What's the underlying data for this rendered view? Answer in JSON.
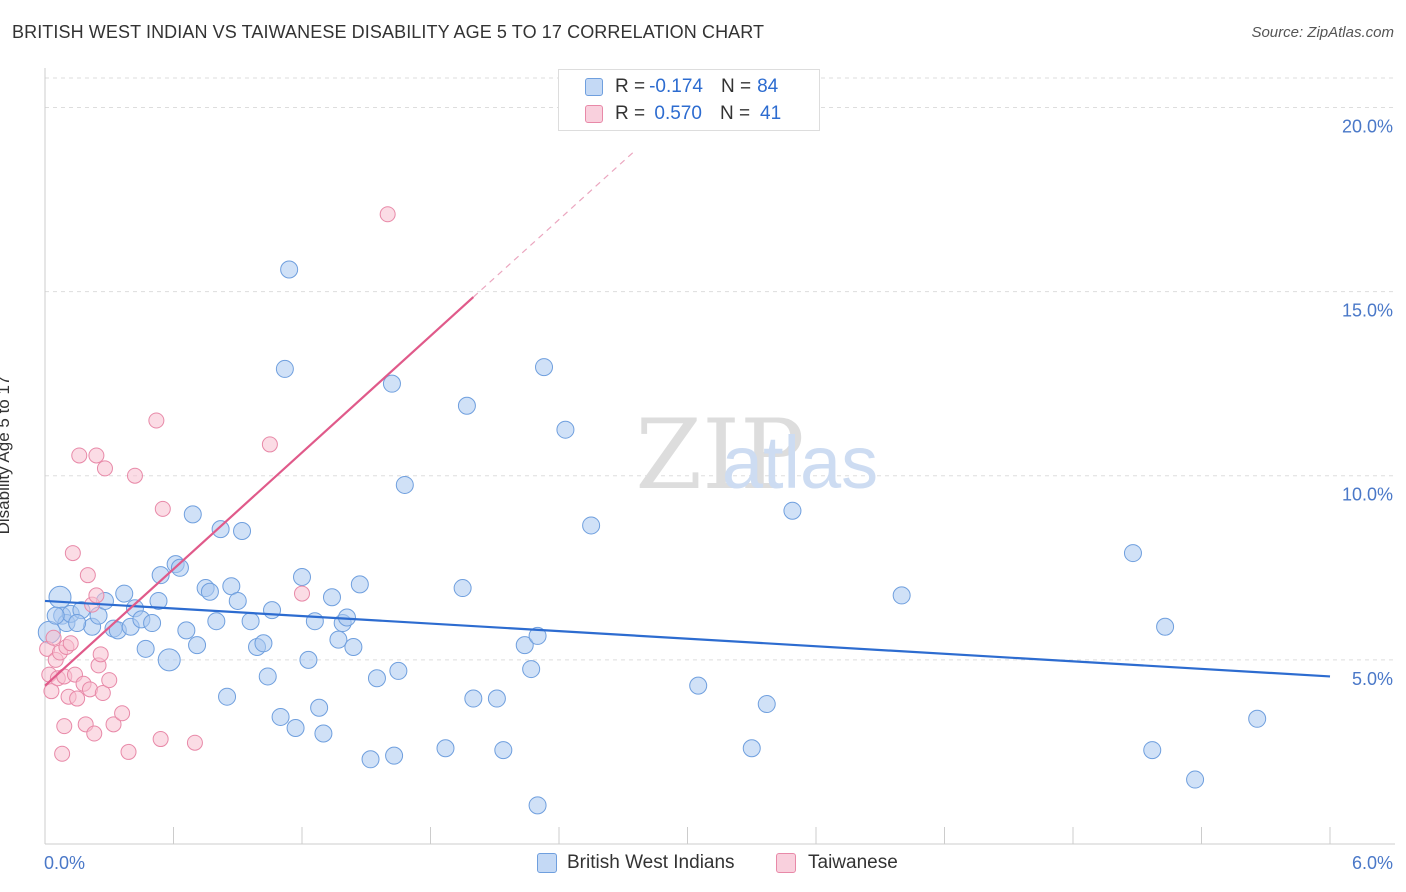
{
  "title": "BRITISH WEST INDIAN VS TAIWANESE DISABILITY AGE 5 TO 17 CORRELATION CHART",
  "source": "Source: ZipAtlas.com",
  "watermark": {
    "zip": "ZIP",
    "atlas": "atlas"
  },
  "legend": {
    "rows": [
      {
        "r_label": "R = ",
        "r_value": "-0.174",
        "n_label": "N = ",
        "n_value": "84",
        "color": "#a9c8f0",
        "border": "#6f9fde"
      },
      {
        "r_label": "R = ",
        "r_value": " 0.570",
        "n_label": "N = ",
        "n_value": "41",
        "color": "#f7bfd0",
        "border": "#e889a8"
      }
    ]
  },
  "bottom_legend": [
    "British West Indians",
    "Taiwanese"
  ],
  "chart_data": {
    "type": "scatter",
    "title": "BRITISH WEST INDIAN VS TAIWANESE DISABILITY AGE 5 TO 17 CORRELATION CHART",
    "xlabel": "",
    "ylabel": "Disability Age 5 to 17",
    "xlim": [
      0,
      6.0
    ],
    "ylim": [
      0,
      20.8
    ],
    "x_ticks": [
      "0.0%",
      "6.0%"
    ],
    "y_ticks": [
      {
        "value": 5,
        "label": "5.0%"
      },
      {
        "value": 10,
        "label": "10.0%"
      },
      {
        "value": 15,
        "label": "15.0%"
      },
      {
        "value": 20,
        "label": "20.0%"
      }
    ],
    "series": [
      {
        "name": "British West Indians",
        "color": "#a9c8f0",
        "edge": "#6f9fde",
        "trend": {
          "x0": 0.0,
          "y0": 6.6,
          "x1": 6.0,
          "y1": 4.55,
          "color": "#2d6cd0"
        },
        "points": [
          [
            0.02,
            5.75
          ],
          [
            0.07,
            6.7
          ],
          [
            0.08,
            6.2
          ],
          [
            0.1,
            6.0
          ],
          [
            0.12,
            6.25
          ],
          [
            0.17,
            6.35
          ],
          [
            0.22,
            5.9
          ],
          [
            0.25,
            6.2
          ],
          [
            0.28,
            6.6
          ],
          [
            0.32,
            5.85
          ],
          [
            0.34,
            5.8
          ],
          [
            0.37,
            6.8
          ],
          [
            0.4,
            5.9
          ],
          [
            0.42,
            6.4
          ],
          [
            0.45,
            6.1
          ],
          [
            0.47,
            5.3
          ],
          [
            0.5,
            6.0
          ],
          [
            0.53,
            6.6
          ],
          [
            0.54,
            7.3
          ],
          [
            0.58,
            5.0
          ],
          [
            0.61,
            7.6
          ],
          [
            0.63,
            7.5
          ],
          [
            0.66,
            5.8
          ],
          [
            0.69,
            8.95
          ],
          [
            0.71,
            5.4
          ],
          [
            0.75,
            6.95
          ],
          [
            0.77,
            6.85
          ],
          [
            0.8,
            6.05
          ],
          [
            0.82,
            8.55
          ],
          [
            0.85,
            4.0
          ],
          [
            0.87,
            7.0
          ],
          [
            0.9,
            6.6
          ],
          [
            0.92,
            8.5
          ],
          [
            0.96,
            6.05
          ],
          [
            0.99,
            5.35
          ],
          [
            1.02,
            5.45
          ],
          [
            1.04,
            4.55
          ],
          [
            1.06,
            6.35
          ],
          [
            1.1,
            3.45
          ],
          [
            1.12,
            12.9
          ],
          [
            1.14,
            15.6
          ],
          [
            1.17,
            3.15
          ],
          [
            1.2,
            7.25
          ],
          [
            1.23,
            5.0
          ],
          [
            1.26,
            6.05
          ],
          [
            1.28,
            3.7
          ],
          [
            1.3,
            3.0
          ],
          [
            1.34,
            6.7
          ],
          [
            1.37,
            5.55
          ],
          [
            1.39,
            6.0
          ],
          [
            1.41,
            6.15
          ],
          [
            1.44,
            5.35
          ],
          [
            1.47,
            7.05
          ],
          [
            1.52,
            2.3
          ],
          [
            1.55,
            4.5
          ],
          [
            1.62,
            12.5
          ],
          [
            1.63,
            2.4
          ],
          [
            1.65,
            4.7
          ],
          [
            1.68,
            9.75
          ],
          [
            1.87,
            2.6
          ],
          [
            1.95,
            6.95
          ],
          [
            1.97,
            11.9
          ],
          [
            2.0,
            3.95
          ],
          [
            2.11,
            3.95
          ],
          [
            2.14,
            2.55
          ],
          [
            2.24,
            5.4
          ],
          [
            2.27,
            4.75
          ],
          [
            2.3,
            5.65
          ],
          [
            2.3,
            1.05
          ],
          [
            2.33,
            12.95
          ],
          [
            2.43,
            11.25
          ],
          [
            2.55,
            8.65
          ],
          [
            3.05,
            4.3
          ],
          [
            3.3,
            2.6
          ],
          [
            3.37,
            3.8
          ],
          [
            3.49,
            9.05
          ],
          [
            4.0,
            6.75
          ],
          [
            5.08,
            7.9
          ],
          [
            5.17,
            2.55
          ],
          [
            5.23,
            5.9
          ],
          [
            5.37,
            1.75
          ],
          [
            5.66,
            3.4
          ],
          [
            0.05,
            6.2
          ],
          [
            0.15,
            6.0
          ]
        ]
      },
      {
        "name": "Taiwanese",
        "color": "#f7bfd0",
        "edge": "#e889a8",
        "trend": {
          "x0": 0.0,
          "y0": 4.3,
          "x1": 2.0,
          "y1": 14.85,
          "ext_x1": 2.75,
          "ext_y1": 18.8,
          "color": "#e05a8a"
        },
        "points": [
          [
            0.01,
            5.3
          ],
          [
            0.02,
            4.6
          ],
          [
            0.03,
            4.15
          ],
          [
            0.05,
            5.0
          ],
          [
            0.06,
            4.5
          ],
          [
            0.07,
            5.2
          ],
          [
            0.08,
            2.45
          ],
          [
            0.09,
            4.55
          ],
          [
            0.1,
            5.35
          ],
          [
            0.11,
            4.0
          ],
          [
            0.12,
            5.45
          ],
          [
            0.13,
            7.9
          ],
          [
            0.14,
            4.6
          ],
          [
            0.15,
            3.95
          ],
          [
            0.16,
            10.55
          ],
          [
            0.18,
            4.35
          ],
          [
            0.19,
            3.25
          ],
          [
            0.2,
            7.3
          ],
          [
            0.21,
            4.2
          ],
          [
            0.22,
            6.5
          ],
          [
            0.23,
            3.0
          ],
          [
            0.24,
            6.75
          ],
          [
            0.24,
            10.55
          ],
          [
            0.25,
            4.85
          ],
          [
            0.26,
            5.15
          ],
          [
            0.27,
            4.1
          ],
          [
            0.28,
            10.2
          ],
          [
            0.3,
            4.45
          ],
          [
            0.32,
            3.25
          ],
          [
            0.36,
            3.55
          ],
          [
            0.39,
            2.5
          ],
          [
            0.42,
            10.0
          ],
          [
            0.52,
            11.5
          ],
          [
            0.54,
            2.85
          ],
          [
            0.55,
            9.1
          ],
          [
            0.7,
            2.75
          ],
          [
            1.05,
            10.85
          ],
          [
            1.2,
            6.8
          ],
          [
            1.6,
            17.1
          ],
          [
            0.04,
            5.6
          ],
          [
            0.09,
            3.2
          ]
        ]
      }
    ]
  }
}
